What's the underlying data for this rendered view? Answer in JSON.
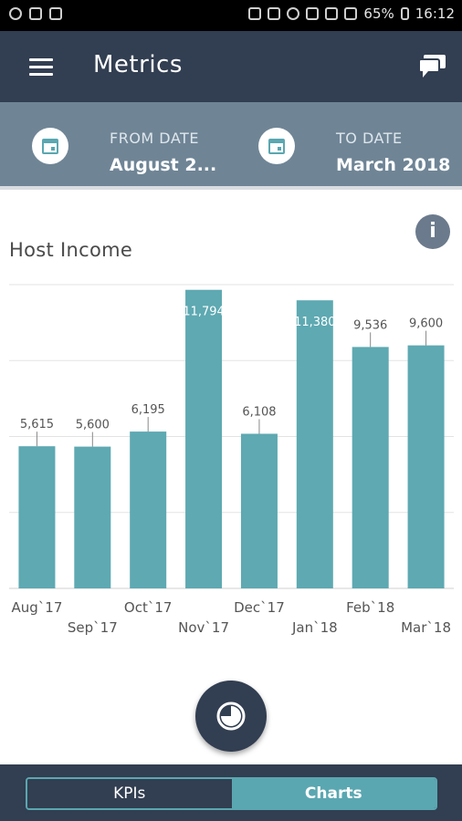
{
  "status_bar": {
    "battery": "65%",
    "time": "16:12"
  },
  "app_bar": {
    "title": "Metrics"
  },
  "date_filter": {
    "from_label": "FROM DATE",
    "from_value": "August 2...",
    "to_label": "TO DATE",
    "to_value": "March 2018"
  },
  "chart_title": "Host Income",
  "chart_data": {
    "type": "bar",
    "title": "Host Income",
    "categories": [
      "Aug`17",
      "Sep`17",
      "Oct`17",
      "Nov`17",
      "Dec`17",
      "Jan`18",
      "Feb`18",
      "Mar`18"
    ],
    "values": [
      5615,
      5600,
      6195,
      11794,
      6108,
      11380,
      9536,
      9600
    ],
    "value_labels": [
      "5,615",
      "5,600",
      "6,195",
      "11,794",
      "6,108",
      "11,380",
      "9,536",
      "9,600"
    ],
    "ylim": [
      0,
      12000
    ],
    "grid": true,
    "bar_color": "#5ea9b2"
  },
  "bottom_tabs": {
    "kpis": "KPIs",
    "charts": "Charts"
  },
  "colors": {
    "primary": "#323e51",
    "accent": "#5aa7b1",
    "date_bar": "#6f8596"
  }
}
